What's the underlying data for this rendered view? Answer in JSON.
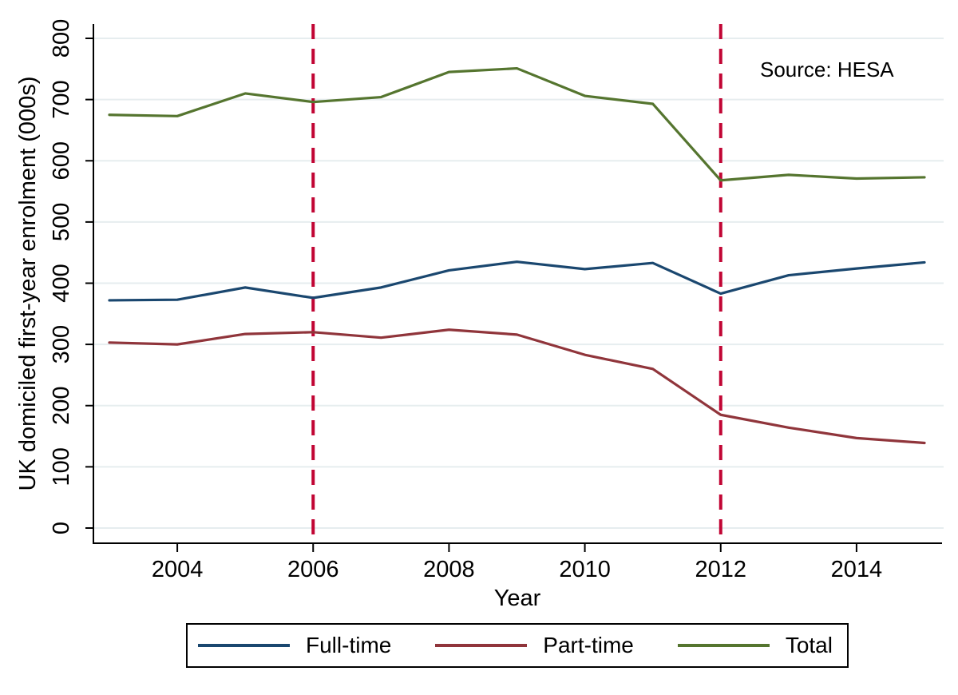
{
  "chart_data": {
    "type": "line",
    "title": "",
    "xlabel": "Year",
    "ylabel": "UK domiciled first-year enrolment (000s)",
    "x": [
      2003,
      2004,
      2005,
      2006,
      2007,
      2008,
      2009,
      2010,
      2011,
      2012,
      2013,
      2014,
      2015
    ],
    "series": [
      {
        "name": "Full-time",
        "color": "#1a476f",
        "values": [
          372,
          373,
          393,
          376,
          393,
          421,
          435,
          423,
          433,
          383,
          413,
          424,
          434
        ]
      },
      {
        "name": "Part-time",
        "color": "#90353b",
        "values": [
          303,
          300,
          317,
          320,
          311,
          324,
          316,
          283,
          260,
          185,
          164,
          147,
          139
        ]
      },
      {
        "name": "Total",
        "color": "#55752f",
        "values": [
          675,
          673,
          710,
          696,
          704,
          745,
          751,
          706,
          693,
          568,
          577,
          571,
          573
        ]
      }
    ],
    "xlim": [
      2003,
      2015
    ],
    "ylim": [
      0,
      800
    ],
    "xticks": [
      2004,
      2006,
      2008,
      2010,
      2012,
      2014
    ],
    "yticks": [
      0,
      100,
      200,
      300,
      400,
      500,
      600,
      700,
      800
    ],
    "grid": "horizontal",
    "grid_color": "#e6edef",
    "axis_color": "#000000",
    "reference_lines": [
      {
        "x": 2006,
        "color": "#c10534",
        "style": "dashed"
      },
      {
        "x": 2012,
        "color": "#c10534",
        "style": "dashed"
      }
    ],
    "legend_position": "bottom",
    "annotations": [
      {
        "text": "Source: HESA",
        "position": "top-right"
      }
    ]
  }
}
